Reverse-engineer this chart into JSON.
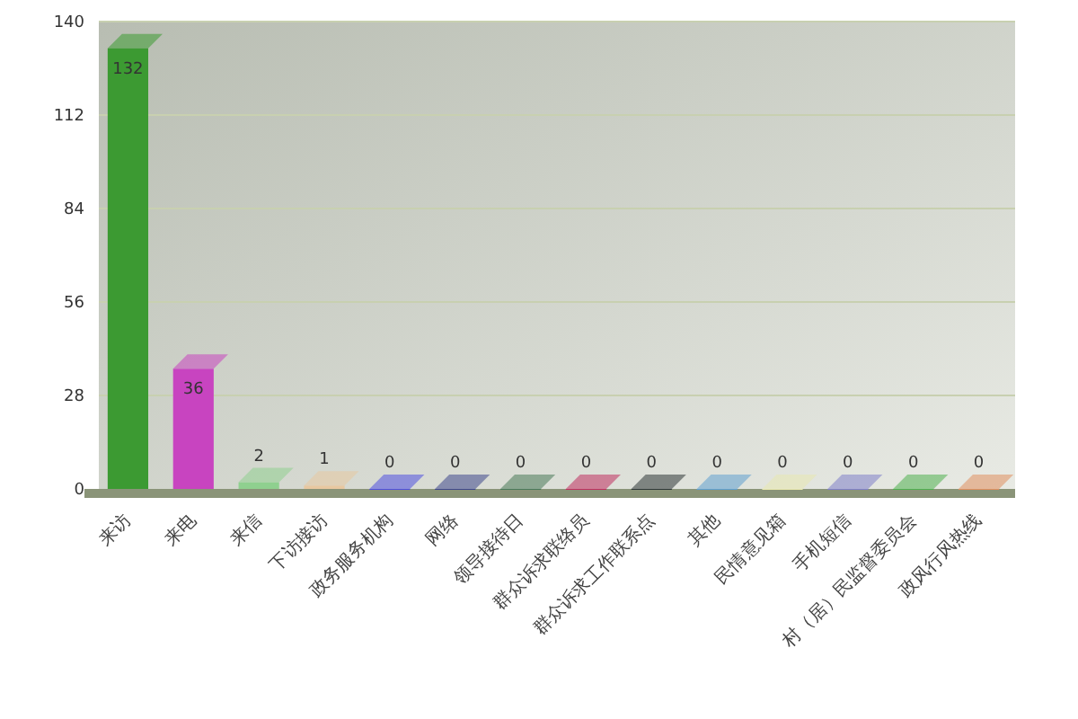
{
  "chart_data": {
    "type": "bar",
    "categories": [
      "来访",
      "来电",
      "来信",
      "下访接访",
      "政务服务机构",
      "网络",
      "领导接待日",
      "群众诉求联络员",
      "群众诉求工作联系点",
      "其他",
      "民情意见箱",
      "手机短信",
      "村（居）民监督委员会",
      "政风行风热线"
    ],
    "values": [
      132,
      36,
      2,
      1,
      0,
      0,
      0,
      0,
      0,
      0,
      0,
      0,
      0,
      0
    ],
    "colors": [
      "#3c9a32",
      "#c844c0",
      "#8fd08f",
      "#e8c8a0",
      "#5050e0",
      "#40488c",
      "#4a7a5a",
      "#c03060",
      "#303838",
      "#60a0d0",
      "#e8e8b0",
      "#8080c8",
      "#50b050",
      "#e09060"
    ],
    "ylim": [
      0,
      140
    ],
    "yticks": [
      0,
      28,
      56,
      84,
      112,
      140
    ],
    "grid": "y",
    "data_labels": true
  }
}
